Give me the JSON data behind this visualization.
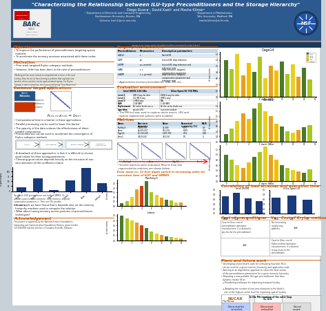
{
  "title": "\"Characterizing the Relationship between ILU-type Preconditioners and the Storage Hierarchy\"",
  "authors": "Diego Rivera¹, David Kaeli¹ and Masha Kilmer²",
  "affil1": "¹ Department of Electrical and Computer Engineering\nNortheastern University, Boston, MA\n{drivera, kaeli}@ece.neu.edu",
  "affil2": "² Department of Mathematics\nTufts University, Medford, MA\nmasha.kilmer@tufts.edu",
  "url": "www.ece.neu.edu/students/drivera/grfunds.html",
  "header_bg": "#2d5a8e",
  "header_text": "#ffffff",
  "url_bar_bg": "#1a3a5c",
  "accent_orange": "#e87722",
  "section_title_color": "#cc5500",
  "body_text_color": "#111111",
  "poster_bg": "#c8d0d8",
  "col_bg": "#f4f4f4",
  "table_alt1": "#dce8f0",
  "table_alt2": "#ffffff",
  "quote_bg": "#e8e8e0",
  "flow_bg": "#e0eef8",
  "bar_blue": "#1a3a7a",
  "bar_colors_multi": [
    "#4a7a2a",
    "#a8c820",
    "#e8d020",
    "#e8a020",
    "#d04020",
    "#4a7a2a",
    "#a8c820",
    "#e8d020",
    "#e8a020",
    "#4a7a2a",
    "#a8c820",
    "#e8d020",
    "#e8a020"
  ],
  "corr_bar_color": "#1a3a7a",
  "cage14_colors": [
    "#4a7a2a",
    "#a8c820",
    "#e8d020",
    "#e8a020",
    "#f0c000",
    "#4a7a2a",
    "#a8c820",
    "#e8d020",
    "#e8a020",
    "#f0c000",
    "#4a7a2a",
    "#a8c820",
    "#e8d020",
    "#e8a020",
    "#4a7a2a",
    "#a8c820"
  ],
  "legend_colors": {
    "ILU": "#4a7a2a",
    "ILUTP": "#a8c820",
    "ILUTR": "#e8d020",
    "ILUD": "#e8a020",
    "GMRES": "#f0e040"
  }
}
